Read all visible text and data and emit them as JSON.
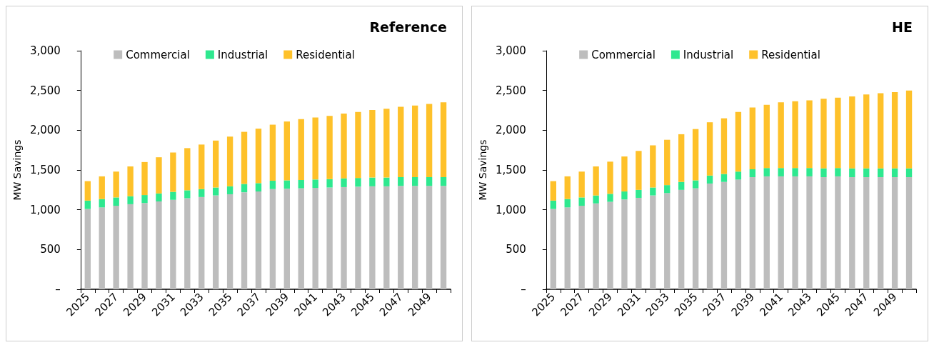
{
  "chart_data": [
    {
      "type": "bar",
      "title": "Reference",
      "ylabel": "MW Savings",
      "stacked": true,
      "legend": "top",
      "grid": false,
      "categories": [
        "2025",
        null,
        "2027",
        null,
        "2029",
        null,
        "2031",
        null,
        "2033",
        null,
        "2035",
        null,
        "2037",
        null,
        "2039",
        null,
        "2041",
        null,
        "2043",
        null,
        "2045",
        null,
        "2047",
        null,
        "2049",
        null
      ],
      "ylim": [
        0,
        3000
      ],
      "yticks": [
        {
          "value": 0,
          "label": "–"
        },
        500,
        {
          "value": 1000,
          "label": "1,000"
        },
        {
          "value": 1500,
          "label": "1,500"
        },
        {
          "value": 2000,
          "label": "2,000"
        },
        {
          "value": 2500,
          "label": "2,500"
        },
        {
          "value": 3000,
          "label": "3,000"
        }
      ],
      "series": [
        {
          "name": "Commercial",
          "color": "#bdbdbd",
          "values": [
            1010,
            1030,
            1050,
            1070,
            1085,
            1105,
            1125,
            1145,
            1160,
            1180,
            1195,
            1220,
            1230,
            1260,
            1265,
            1270,
            1275,
            1280,
            1285,
            1290,
            1295,
            1295,
            1300,
            1300,
            1300,
            1300
          ]
        },
        {
          "name": "Industrial",
          "color": "#2ee88f",
          "values": [
            105,
            105,
            105,
            100,
            100,
            100,
            100,
            100,
            100,
            100,
            100,
            105,
            105,
            105,
            105,
            105,
            105,
            105,
            110,
            110,
            110,
            110,
            110,
            110,
            110,
            110
          ]
        },
        {
          "name": "Residential",
          "color": "#fec12a",
          "values": [
            245,
            285,
            325,
            375,
            415,
            455,
            495,
            530,
            560,
            590,
            625,
            655,
            685,
            705,
            740,
            765,
            780,
            795,
            815,
            830,
            850,
            865,
            885,
            900,
            920,
            940
          ]
        }
      ]
    },
    {
      "type": "bar",
      "title": "HE",
      "ylabel": "MW Savings",
      "stacked": true,
      "legend": "top",
      "grid": false,
      "categories": [
        "2025",
        null,
        "2027",
        null,
        "2029",
        null,
        "2031",
        null,
        "2033",
        null,
        "2035",
        null,
        "2037",
        null,
        "2039",
        null,
        "2041",
        null,
        "2043",
        null,
        "2045",
        null,
        "2047",
        null,
        "2049",
        null
      ],
      "ylim": [
        0,
        3000
      ],
      "yticks": [
        {
          "value": 0,
          "label": "–"
        },
        500,
        {
          "value": 1000,
          "label": "1,000"
        },
        {
          "value": 1500,
          "label": "1,500"
        },
        {
          "value": 2000,
          "label": "2,000"
        },
        {
          "value": 2500,
          "label": "2,500"
        },
        {
          "value": 3000,
          "label": "3,000"
        }
      ],
      "series": [
        {
          "name": "Commercial",
          "color": "#bdbdbd",
          "values": [
            1010,
            1030,
            1050,
            1080,
            1100,
            1130,
            1150,
            1180,
            1210,
            1250,
            1270,
            1330,
            1350,
            1380,
            1410,
            1420,
            1420,
            1420,
            1420,
            1410,
            1420,
            1410,
            1410,
            1410,
            1410,
            1410
          ]
        },
        {
          "name": "Industrial",
          "color": "#2ee88f",
          "values": [
            105,
            105,
            105,
            100,
            100,
            100,
            100,
            100,
            100,
            100,
            100,
            100,
            100,
            100,
            100,
            105,
            105,
            105,
            105,
            110,
            105,
            110,
            110,
            110,
            110,
            110
          ]
        },
        {
          "name": "Residential",
          "color": "#fec12a",
          "values": [
            245,
            285,
            325,
            365,
            405,
            440,
            490,
            530,
            570,
            600,
            645,
            670,
            700,
            750,
            775,
            795,
            825,
            840,
            850,
            875,
            885,
            905,
            930,
            945,
            960,
            980
          ]
        }
      ]
    }
  ]
}
